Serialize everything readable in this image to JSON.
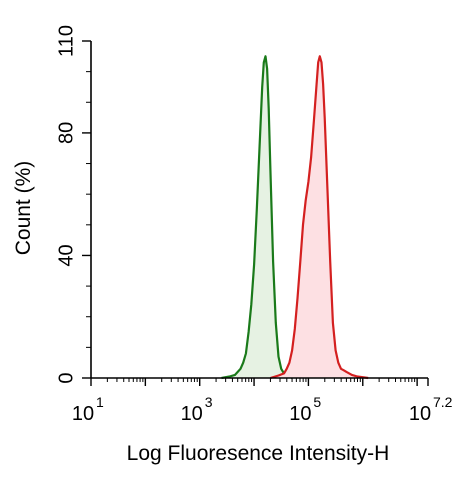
{
  "chart_data": {
    "type": "area",
    "title": "",
    "xlabel": "Log Fluoresence Intensity-H",
    "ylabel": "Count  (%)",
    "xscale": "log",
    "xlim_log10": [
      1,
      7.2
    ],
    "ylim": [
      0,
      110
    ],
    "grid": false,
    "legend": "none",
    "x_ticks": [
      {
        "base": "10",
        "exp": "1",
        "value": 1
      },
      {
        "base": "10",
        "exp": "3",
        "value": 3
      },
      {
        "base": "10",
        "exp": "5",
        "value": 5
      },
      {
        "base": "10",
        "exp": "7.2",
        "value": 7.2
      }
    ],
    "y_ticks": [
      {
        "label": "0",
        "value": 0
      },
      {
        "label": "40",
        "value": 40
      },
      {
        "label": "80",
        "value": 80
      },
      {
        "label": "110",
        "value": 110
      }
    ],
    "series": [
      {
        "color": "#1a7a1a",
        "fill": "#e6f2e3",
        "x_log10": [
          3.4,
          3.55,
          3.65,
          3.75,
          3.8,
          3.85,
          3.9,
          3.95,
          4.0,
          4.05,
          4.1,
          4.15,
          4.18,
          4.21,
          4.24,
          4.27,
          4.3,
          4.35,
          4.4,
          4.45,
          4.5,
          4.55,
          4.6,
          4.7
        ],
        "values": [
          0,
          0.5,
          1,
          3,
          5,
          8,
          15,
          24,
          37,
          55,
          75,
          95,
          103,
          105,
          101,
          88,
          68,
          38,
          18,
          7,
          3,
          1.5,
          1,
          0
        ]
      },
      {
        "color": "#d42020",
        "fill": "#fde0e3",
        "x_log10": [
          4.3,
          4.45,
          4.55,
          4.6,
          4.65,
          4.7,
          4.75,
          4.8,
          4.85,
          4.9,
          4.95,
          5.0,
          5.05,
          5.1,
          5.15,
          5.18,
          5.21,
          5.24,
          5.27,
          5.3,
          5.35,
          5.4,
          5.45,
          5.5,
          5.55,
          5.6,
          5.65,
          5.7,
          5.8,
          5.9,
          6.1
        ],
        "values": [
          0,
          0.8,
          1.5,
          3,
          5,
          9,
          16,
          26,
          38,
          50,
          58,
          64,
          72,
          84,
          96,
          103,
          105,
          103,
          96,
          85,
          62,
          38,
          18,
          9,
          5,
          3,
          2.5,
          2,
          1,
          0.5,
          0
        ]
      }
    ]
  }
}
